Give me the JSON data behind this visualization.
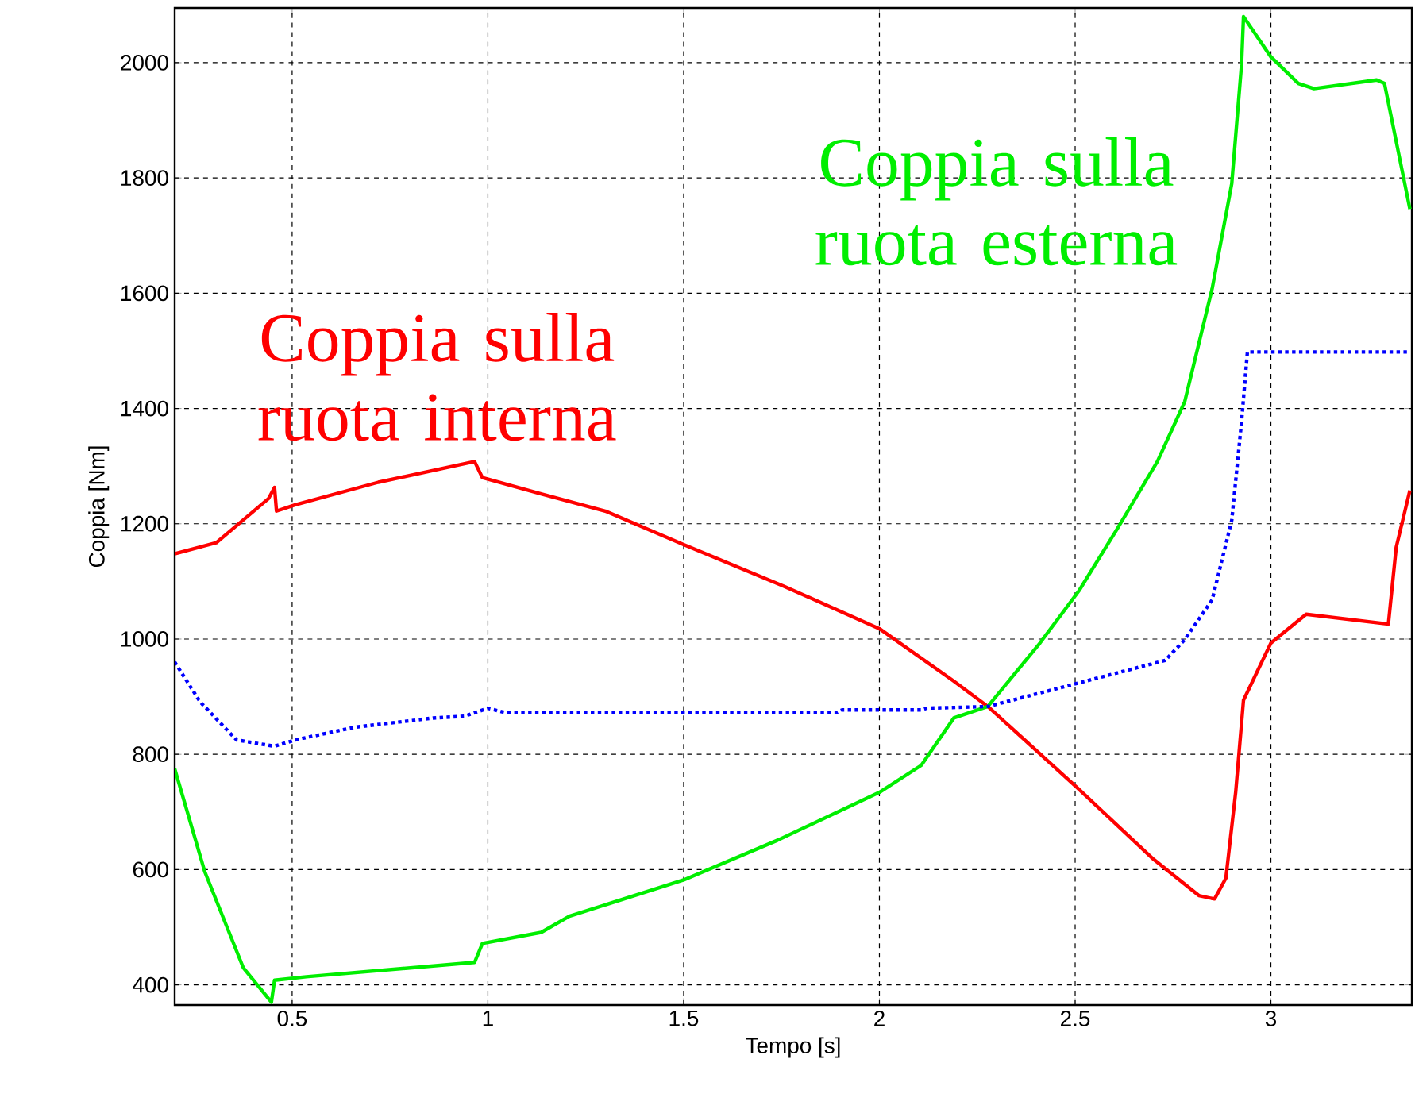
{
  "chart_data": {
    "type": "line",
    "xlabel": "Tempo [s]",
    "ylabel": "Coppia [Nm]",
    "xlim": [
      0.2,
      3.36
    ],
    "ylim": [
      365,
      2095
    ],
    "xticks": [
      0.5,
      1,
      1.5,
      2,
      2.5,
      3
    ],
    "yticks": [
      400,
      600,
      800,
      1000,
      1200,
      1400,
      1600,
      1800,
      2000
    ],
    "grid": true,
    "series": [
      {
        "name": "Coppia sulla ruota interna",
        "color": "#ff0000",
        "line_style": "solid",
        "x": [
          0.2,
          0.306,
          0.334,
          0.44,
          0.455,
          0.46,
          0.508,
          0.72,
          0.966,
          0.986,
          1.136,
          1.3,
          1.5,
          1.755,
          2.0,
          2.19,
          2.277,
          2.51,
          2.7,
          2.816,
          2.856,
          2.885,
          2.91,
          2.93,
          3.0,
          3.09,
          3.3,
          3.32,
          3.355
        ],
        "values": [
          1148,
          1167,
          1183,
          1244,
          1263,
          1222,
          1233,
          1272,
          1308,
          1280,
          1252,
          1222,
          1164,
          1092,
          1018,
          927,
          883,
          739,
          618,
          555,
          549,
          585,
          734,
          894,
          993,
          1043,
          1026,
          1159,
          1258
        ]
      },
      {
        "name": "Coppia sulla ruota esterna",
        "color": "#00ee00",
        "line_style": "solid",
        "x": [
          0.2,
          0.277,
          0.375,
          0.447,
          0.455,
          0.536,
          0.966,
          0.986,
          1.136,
          1.208,
          1.5,
          1.74,
          2.0,
          2.107,
          2.19,
          2.277,
          2.41,
          2.51,
          2.61,
          2.71,
          2.78,
          2.85,
          2.9,
          2.925,
          2.93,
          3.0,
          3.07,
          3.11,
          3.27,
          3.29,
          3.355
        ],
        "values": [
          775,
          596,
          430,
          370,
          408,
          414,
          439,
          472,
          491,
          519,
          582,
          651,
          734,
          781,
          863,
          883,
          993,
          1084,
          1194,
          1308,
          1412,
          1608,
          1790,
          1997,
          2080,
          2010,
          1964,
          1955,
          1970,
          1964,
          1746
        ]
      },
      {
        "color": "#0000ff",
        "line_style": "dotted",
        "x": [
          0.2,
          0.265,
          0.358,
          0.455,
          0.508,
          0.66,
          0.86,
          0.94,
          1.0,
          1.046,
          1.89,
          1.905,
          2.107,
          2.12,
          2.277,
          2.51,
          2.73,
          2.78,
          2.85,
          2.9,
          2.925,
          2.94,
          3.0,
          3.355
        ],
        "values": [
          960,
          891,
          825,
          814,
          825,
          847,
          863,
          866,
          880,
          872,
          872,
          877,
          877,
          880,
          883,
          924,
          963,
          999,
          1068,
          1206,
          1377,
          1498,
          1498,
          1498
        ]
      }
    ]
  }
}
